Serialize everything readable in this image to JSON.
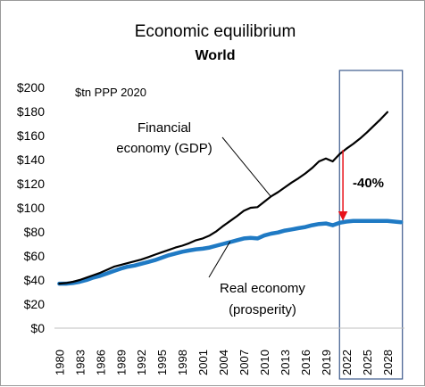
{
  "chart_data": {
    "type": "line",
    "title": "Economic equilibrium",
    "subtitle": "World",
    "unit_label": "$tn PPP 2020",
    "yticks": [
      "$0",
      "$20",
      "$40",
      "$60",
      "$80",
      "$100",
      "$120",
      "$140",
      "$160",
      "$180",
      "$200"
    ],
    "ylim": [
      0,
      200
    ],
    "xticks": [
      "1980",
      "1983",
      "1986",
      "1989",
      "1992",
      "1995",
      "1998",
      "2001",
      "2004",
      "2007",
      "2010",
      "2013",
      "2016",
      "2019",
      "2022",
      "2025",
      "2028"
    ],
    "xlim": [
      1979.3,
      2030.5
    ],
    "series": [
      {
        "name": "Financial economy (GDP)",
        "color": "#000000",
        "points": [
          [
            1980,
            37
          ],
          [
            1981,
            37.5
          ],
          [
            1982,
            38.5
          ],
          [
            1983,
            40
          ],
          [
            1984,
            42
          ],
          [
            1985,
            44
          ],
          [
            1986,
            46
          ],
          [
            1987,
            48.5
          ],
          [
            1988,
            51
          ],
          [
            1989,
            52.5
          ],
          [
            1990,
            54
          ],
          [
            1991,
            55.5
          ],
          [
            1992,
            57
          ],
          [
            1993,
            59
          ],
          [
            1994,
            61
          ],
          [
            1995,
            63
          ],
          [
            1996,
            65
          ],
          [
            1997,
            67
          ],
          [
            1998,
            68.5
          ],
          [
            1999,
            70.5
          ],
          [
            2000,
            73
          ],
          [
            2001,
            74.5
          ],
          [
            2002,
            77
          ],
          [
            2003,
            80.5
          ],
          [
            2004,
            85
          ],
          [
            2005,
            89
          ],
          [
            2006,
            93
          ],
          [
            2007,
            97.5
          ],
          [
            2008,
            100
          ],
          [
            2009,
            100.5
          ],
          [
            2010,
            105
          ],
          [
            2011,
            109.5
          ],
          [
            2012,
            113
          ],
          [
            2013,
            117
          ],
          [
            2014,
            121
          ],
          [
            2015,
            124.5
          ],
          [
            2016,
            128.5
          ],
          [
            2017,
            133
          ],
          [
            2018,
            138.5
          ],
          [
            2019,
            141
          ],
          [
            2020,
            138.5
          ],
          [
            2021,
            144.5
          ],
          [
            2022,
            149
          ],
          [
            2023,
            153
          ],
          [
            2024,
            157.5
          ],
          [
            2025,
            162.5
          ],
          [
            2026,
            168
          ],
          [
            2027,
            173.5
          ],
          [
            2028,
            179.5
          ]
        ]
      },
      {
        "name": "Real economy (prosperity)",
        "color": "#1f7ac4",
        "points": [
          [
            1980,
            37
          ],
          [
            1981,
            37
          ],
          [
            1982,
            37.5
          ],
          [
            1983,
            38.5
          ],
          [
            1984,
            40
          ],
          [
            1985,
            42
          ],
          [
            1986,
            43.5
          ],
          [
            1987,
            45.5
          ],
          [
            1988,
            47.5
          ],
          [
            1989,
            49.5
          ],
          [
            1990,
            51
          ],
          [
            1991,
            52
          ],
          [
            1992,
            53.5
          ],
          [
            1993,
            55
          ],
          [
            1994,
            56.5
          ],
          [
            1995,
            58.5
          ],
          [
            1996,
            60.5
          ],
          [
            1997,
            62
          ],
          [
            1998,
            63.5
          ],
          [
            1999,
            64.5
          ],
          [
            2000,
            65.5
          ],
          [
            2001,
            66
          ],
          [
            2002,
            67
          ],
          [
            2003,
            68.5
          ],
          [
            2004,
            70
          ],
          [
            2005,
            71.5
          ],
          [
            2006,
            73
          ],
          [
            2007,
            74.5
          ],
          [
            2008,
            75
          ],
          [
            2009,
            74.5
          ],
          [
            2010,
            77
          ],
          [
            2011,
            78.5
          ],
          [
            2012,
            79.5
          ],
          [
            2013,
            81
          ],
          [
            2014,
            82
          ],
          [
            2015,
            83
          ],
          [
            2016,
            84
          ],
          [
            2017,
            85.5
          ],
          [
            2018,
            86.5
          ],
          [
            2019,
            87
          ],
          [
            2020,
            85.5
          ],
          [
            2021,
            87.5
          ],
          [
            2022,
            88.5
          ],
          [
            2023,
            89
          ],
          [
            2024,
            89
          ],
          [
            2025,
            89
          ],
          [
            2026,
            89
          ],
          [
            2027,
            89
          ],
          [
            2028,
            89
          ],
          [
            2029,
            88.5
          ],
          [
            2030,
            88
          ]
        ]
      }
    ],
    "annotations": {
      "financial_label": [
        "Financial",
        "economy (GDP)"
      ],
      "real_label": [
        "Real economy",
        "(prosperity)"
      ],
      "gap_label": "-40%",
      "gap_x": 2021.5,
      "gap_from": 148,
      "gap_to": 90,
      "highlight_from": 2021,
      "highlight_to": 2030.2
    },
    "grid": false,
    "legend": "none"
  }
}
